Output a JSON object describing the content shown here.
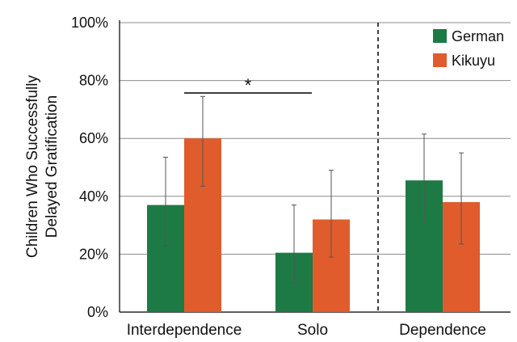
{
  "chart_data": {
    "type": "bar",
    "categories": [
      "Interdependence",
      "Solo",
      "Dependence"
    ],
    "series": [
      {
        "name": "German",
        "color": "#1e7a45",
        "values": [
          37,
          20.5,
          45.5
        ],
        "error_low": [
          23,
          10,
          30.5
        ],
        "error_high": [
          53.5,
          37,
          61.5
        ]
      },
      {
        "name": "Kikuyu",
        "color": "#e05c2c",
        "values": [
          60,
          32,
          38
        ],
        "error_low": [
          43.5,
          19,
          23.5
        ],
        "error_high": [
          74.5,
          49,
          55
        ]
      }
    ],
    "ylabel_lines": [
      "Children Who Successfully",
      "Delayed Gratification"
    ],
    "ylim": [
      0,
      100
    ],
    "yticks": [
      0,
      20,
      40,
      60,
      80,
      100
    ],
    "ytick_labels": [
      "0%",
      "20%",
      "40%",
      "60%",
      "80%",
      "100%"
    ],
    "grid": "horizontal",
    "legend_position": "top-right",
    "significance": {
      "from": "German Interdependence",
      "to": "Solo midpoint",
      "label": "*"
    },
    "separator": "dashed line between Solo and Dependence"
  }
}
